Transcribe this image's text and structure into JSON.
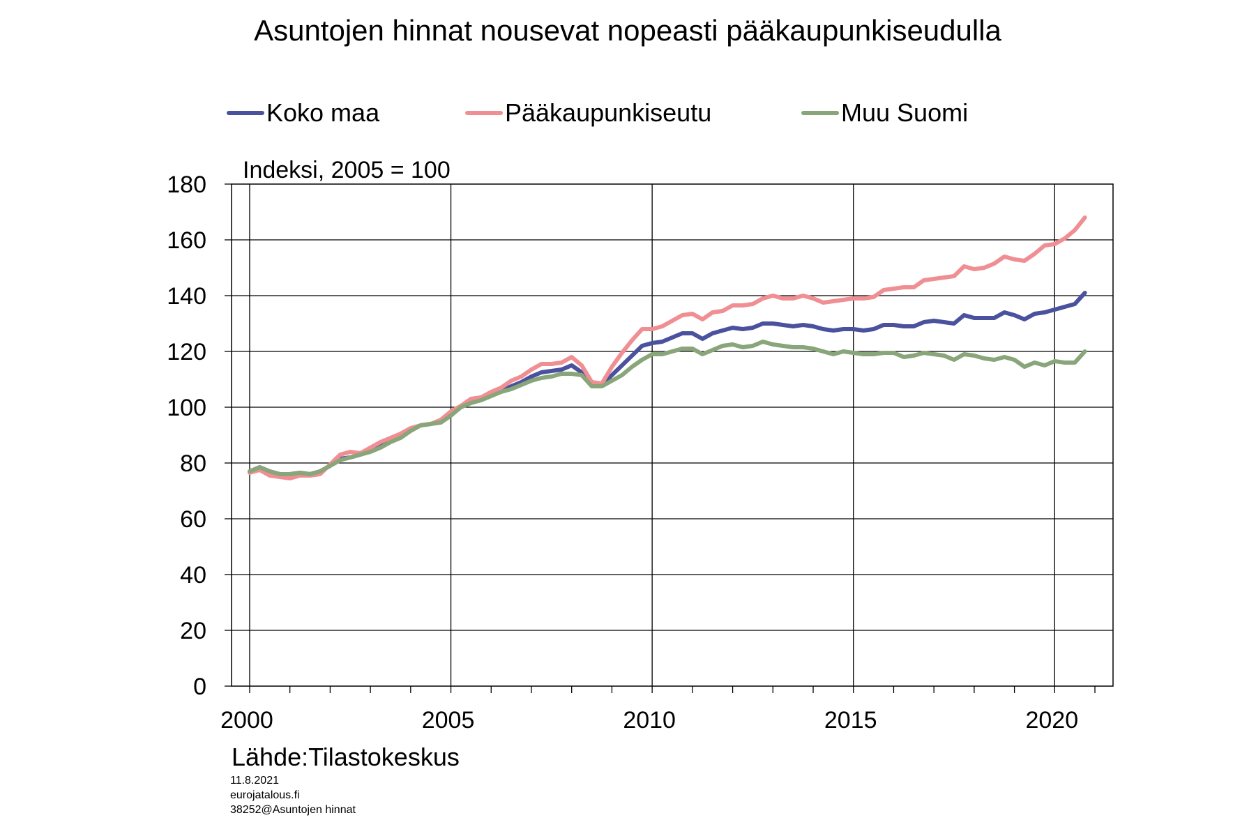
{
  "chart_data": {
    "type": "line",
    "title": "Asuntojen hinnat nousevat nopeasti pääkaupunkiseudulla",
    "ylabel": "Indeksi, 2005 = 100",
    "xlabel": "",
    "ylim": [
      0,
      180
    ],
    "yticks": [
      "0",
      "20",
      "40",
      "60",
      "80",
      "100",
      "120",
      "140",
      "160",
      "180"
    ],
    "xlim": [
      1999.55,
      2021.45
    ],
    "xticks": [
      "2000",
      "2005",
      "2010",
      "2015",
      "2020"
    ],
    "grid": true,
    "legend_position": "top",
    "source": "Lähde:Tilastokeskus",
    "footer": [
      "11.8.2021",
      "eurojatalous.fi",
      "38252@Asuntojen  hinnat"
    ],
    "series": [
      {
        "name": "Koko maa",
        "color": "#4a529e",
        "points": [
          [
            2000.0,
            77.0
          ],
          [
            2000.25,
            78.5
          ],
          [
            2000.5,
            77.0
          ],
          [
            2000.75,
            76.0
          ],
          [
            2001.0,
            76.0
          ],
          [
            2001.25,
            76.5
          ],
          [
            2001.5,
            76.0
          ],
          [
            2001.75,
            77.0
          ],
          [
            2002.0,
            79.0
          ],
          [
            2002.25,
            81.5
          ],
          [
            2002.5,
            82.0
          ],
          [
            2002.75,
            83.0
          ],
          [
            2003.0,
            84.5
          ],
          [
            2003.25,
            86.0
          ],
          [
            2003.5,
            88.0
          ],
          [
            2003.75,
            89.5
          ],
          [
            2004.0,
            92.0
          ],
          [
            2004.25,
            93.5
          ],
          [
            2004.5,
            94.0
          ],
          [
            2004.75,
            95.0
          ],
          [
            2005.0,
            97.5
          ],
          [
            2005.25,
            100.0
          ],
          [
            2005.5,
            102.0
          ],
          [
            2005.75,
            103.0
          ],
          [
            2006.0,
            104.5
          ],
          [
            2006.25,
            106.0
          ],
          [
            2006.5,
            107.5
          ],
          [
            2006.75,
            109.0
          ],
          [
            2007.0,
            111.0
          ],
          [
            2007.25,
            112.5
          ],
          [
            2007.5,
            113.0
          ],
          [
            2007.75,
            113.5
          ],
          [
            2008.0,
            115.0
          ],
          [
            2008.25,
            112.5
          ],
          [
            2008.5,
            108.5
          ],
          [
            2008.75,
            108.0
          ],
          [
            2009.0,
            111.5
          ],
          [
            2009.25,
            115.0
          ],
          [
            2009.5,
            118.5
          ],
          [
            2009.75,
            122.0
          ],
          [
            2010.0,
            123.0
          ],
          [
            2010.25,
            123.5
          ],
          [
            2010.5,
            125.0
          ],
          [
            2010.75,
            126.5
          ],
          [
            2011.0,
            126.5
          ],
          [
            2011.25,
            124.5
          ],
          [
            2011.5,
            126.5
          ],
          [
            2011.75,
            127.5
          ],
          [
            2012.0,
            128.5
          ],
          [
            2012.25,
            128.0
          ],
          [
            2012.5,
            128.5
          ],
          [
            2012.75,
            130.0
          ],
          [
            2013.0,
            130.0
          ],
          [
            2013.25,
            129.5
          ],
          [
            2013.5,
            129.0
          ],
          [
            2013.75,
            129.5
          ],
          [
            2014.0,
            129.0
          ],
          [
            2014.25,
            128.0
          ],
          [
            2014.5,
            127.5
          ],
          [
            2014.75,
            128.0
          ],
          [
            2015.0,
            128.0
          ],
          [
            2015.25,
            127.5
          ],
          [
            2015.5,
            128.0
          ],
          [
            2015.75,
            129.5
          ],
          [
            2016.0,
            129.5
          ],
          [
            2016.25,
            129.0
          ],
          [
            2016.5,
            129.0
          ],
          [
            2016.75,
            130.5
          ],
          [
            2017.0,
            131.0
          ],
          [
            2017.25,
            130.5
          ],
          [
            2017.5,
            130.0
          ],
          [
            2017.75,
            133.0
          ],
          [
            2018.0,
            132.0
          ],
          [
            2018.25,
            132.0
          ],
          [
            2018.5,
            132.0
          ],
          [
            2018.75,
            134.0
          ],
          [
            2019.0,
            133.0
          ],
          [
            2019.25,
            131.5
          ],
          [
            2019.5,
            133.5
          ],
          [
            2019.75,
            134.0
          ],
          [
            2020.0,
            135.0
          ],
          [
            2020.25,
            136.0
          ],
          [
            2020.5,
            137.0
          ],
          [
            2020.75,
            141.0
          ]
        ]
      },
      {
        "name": "Pääkaupunkiseutu",
        "color": "#f08f93",
        "points": [
          [
            2000.0,
            76.5
          ],
          [
            2000.25,
            77.5
          ],
          [
            2000.5,
            75.5
          ],
          [
            2000.75,
            75.0
          ],
          [
            2001.0,
            74.5
          ],
          [
            2001.25,
            75.5
          ],
          [
            2001.5,
            75.5
          ],
          [
            2001.75,
            76.0
          ],
          [
            2002.0,
            79.5
          ],
          [
            2002.25,
            83.0
          ],
          [
            2002.5,
            84.0
          ],
          [
            2002.75,
            83.5
          ],
          [
            2003.0,
            85.5
          ],
          [
            2003.25,
            87.5
          ],
          [
            2003.5,
            89.0
          ],
          [
            2003.75,
            90.5
          ],
          [
            2004.0,
            92.5
          ],
          [
            2004.25,
            93.5
          ],
          [
            2004.5,
            94.0
          ],
          [
            2004.75,
            95.5
          ],
          [
            2005.0,
            98.5
          ],
          [
            2005.25,
            100.5
          ],
          [
            2005.5,
            103.0
          ],
          [
            2005.75,
            103.5
          ],
          [
            2006.0,
            105.5
          ],
          [
            2006.25,
            107.0
          ],
          [
            2006.5,
            109.5
          ],
          [
            2006.75,
            111.0
          ],
          [
            2007.0,
            113.5
          ],
          [
            2007.25,
            115.5
          ],
          [
            2007.5,
            115.5
          ],
          [
            2007.75,
            116.0
          ],
          [
            2008.0,
            118.0
          ],
          [
            2008.25,
            115.0
          ],
          [
            2008.5,
            109.0
          ],
          [
            2008.75,
            108.5
          ],
          [
            2009.0,
            114.5
          ],
          [
            2009.25,
            119.5
          ],
          [
            2009.5,
            124.0
          ],
          [
            2009.75,
            128.0
          ],
          [
            2010.0,
            128.0
          ],
          [
            2010.25,
            129.0
          ],
          [
            2010.5,
            131.0
          ],
          [
            2010.75,
            133.0
          ],
          [
            2011.0,
            133.5
          ],
          [
            2011.25,
            131.5
          ],
          [
            2011.5,
            134.0
          ],
          [
            2011.75,
            134.5
          ],
          [
            2012.0,
            136.5
          ],
          [
            2012.25,
            136.5
          ],
          [
            2012.5,
            137.0
          ],
          [
            2012.75,
            139.0
          ],
          [
            2013.0,
            140.0
          ],
          [
            2013.25,
            139.0
          ],
          [
            2013.5,
            139.0
          ],
          [
            2013.75,
            140.0
          ],
          [
            2014.0,
            139.0
          ],
          [
            2014.25,
            137.5
          ],
          [
            2014.5,
            138.0
          ],
          [
            2014.75,
            138.5
          ],
          [
            2015.0,
            139.0
          ],
          [
            2015.25,
            139.0
          ],
          [
            2015.5,
            139.5
          ],
          [
            2015.75,
            142.0
          ],
          [
            2016.0,
            142.5
          ],
          [
            2016.25,
            143.0
          ],
          [
            2016.5,
            143.0
          ],
          [
            2016.75,
            145.5
          ],
          [
            2017.0,
            146.0
          ],
          [
            2017.25,
            146.5
          ],
          [
            2017.5,
            147.0
          ],
          [
            2017.75,
            150.5
          ],
          [
            2018.0,
            149.5
          ],
          [
            2018.25,
            150.0
          ],
          [
            2018.5,
            151.5
          ],
          [
            2018.75,
            154.0
          ],
          [
            2019.0,
            153.0
          ],
          [
            2019.25,
            152.5
          ],
          [
            2019.5,
            155.0
          ],
          [
            2019.75,
            158.0
          ],
          [
            2020.0,
            158.5
          ],
          [
            2020.25,
            160.5
          ],
          [
            2020.5,
            163.5
          ],
          [
            2020.75,
            168.0
          ]
        ]
      },
      {
        "name": "Muu Suomi",
        "color": "#89a57a",
        "points": [
          [
            2000.0,
            77.0
          ],
          [
            2000.25,
            78.5
          ],
          [
            2000.5,
            77.0
          ],
          [
            2000.75,
            76.0
          ],
          [
            2001.0,
            76.0
          ],
          [
            2001.25,
            76.5
          ],
          [
            2001.5,
            76.0
          ],
          [
            2001.75,
            77.0
          ],
          [
            2002.0,
            79.0
          ],
          [
            2002.25,
            81.0
          ],
          [
            2002.5,
            82.0
          ],
          [
            2002.75,
            83.0
          ],
          [
            2003.0,
            84.0
          ],
          [
            2003.25,
            85.5
          ],
          [
            2003.5,
            87.5
          ],
          [
            2003.75,
            89.0
          ],
          [
            2004.0,
            91.5
          ],
          [
            2004.25,
            93.5
          ],
          [
            2004.5,
            94.0
          ],
          [
            2004.75,
            94.5
          ],
          [
            2005.0,
            97.0
          ],
          [
            2005.25,
            100.0
          ],
          [
            2005.5,
            101.5
          ],
          [
            2005.75,
            102.5
          ],
          [
            2006.0,
            104.0
          ],
          [
            2006.25,
            105.5
          ],
          [
            2006.5,
            106.5
          ],
          [
            2006.75,
            108.0
          ],
          [
            2007.0,
            109.5
          ],
          [
            2007.25,
            110.5
          ],
          [
            2007.5,
            111.0
          ],
          [
            2007.75,
            112.0
          ],
          [
            2008.0,
            112.0
          ],
          [
            2008.25,
            111.5
          ],
          [
            2008.5,
            107.5
          ],
          [
            2008.75,
            107.5
          ],
          [
            2009.0,
            109.5
          ],
          [
            2009.25,
            111.5
          ],
          [
            2009.5,
            114.5
          ],
          [
            2009.75,
            117.0
          ],
          [
            2010.0,
            119.0
          ],
          [
            2010.25,
            119.0
          ],
          [
            2010.5,
            120.0
          ],
          [
            2010.75,
            121.0
          ],
          [
            2011.0,
            121.0
          ],
          [
            2011.25,
            119.0
          ],
          [
            2011.5,
            120.5
          ],
          [
            2011.75,
            122.0
          ],
          [
            2012.0,
            122.5
          ],
          [
            2012.25,
            121.5
          ],
          [
            2012.5,
            122.0
          ],
          [
            2012.75,
            123.5
          ],
          [
            2013.0,
            122.5
          ],
          [
            2013.25,
            122.0
          ],
          [
            2013.5,
            121.5
          ],
          [
            2013.75,
            121.5
          ],
          [
            2014.0,
            121.0
          ],
          [
            2014.25,
            120.0
          ],
          [
            2014.5,
            119.0
          ],
          [
            2014.75,
            120.0
          ],
          [
            2015.0,
            119.5
          ],
          [
            2015.25,
            119.0
          ],
          [
            2015.5,
            119.0
          ],
          [
            2015.75,
            119.5
          ],
          [
            2016.0,
            119.5
          ],
          [
            2016.25,
            118.0
          ],
          [
            2016.5,
            118.5
          ],
          [
            2016.75,
            119.5
          ],
          [
            2017.0,
            119.0
          ],
          [
            2017.25,
            118.5
          ],
          [
            2017.5,
            117.0
          ],
          [
            2017.75,
            119.0
          ],
          [
            2018.0,
            118.5
          ],
          [
            2018.25,
            117.5
          ],
          [
            2018.5,
            117.0
          ],
          [
            2018.75,
            118.0
          ],
          [
            2019.0,
            117.0
          ],
          [
            2019.25,
            114.5
          ],
          [
            2019.5,
            116.0
          ],
          [
            2019.75,
            115.0
          ],
          [
            2020.0,
            116.5
          ],
          [
            2020.25,
            116.0
          ],
          [
            2020.5,
            116.0
          ],
          [
            2020.75,
            120.0
          ]
        ]
      }
    ]
  }
}
